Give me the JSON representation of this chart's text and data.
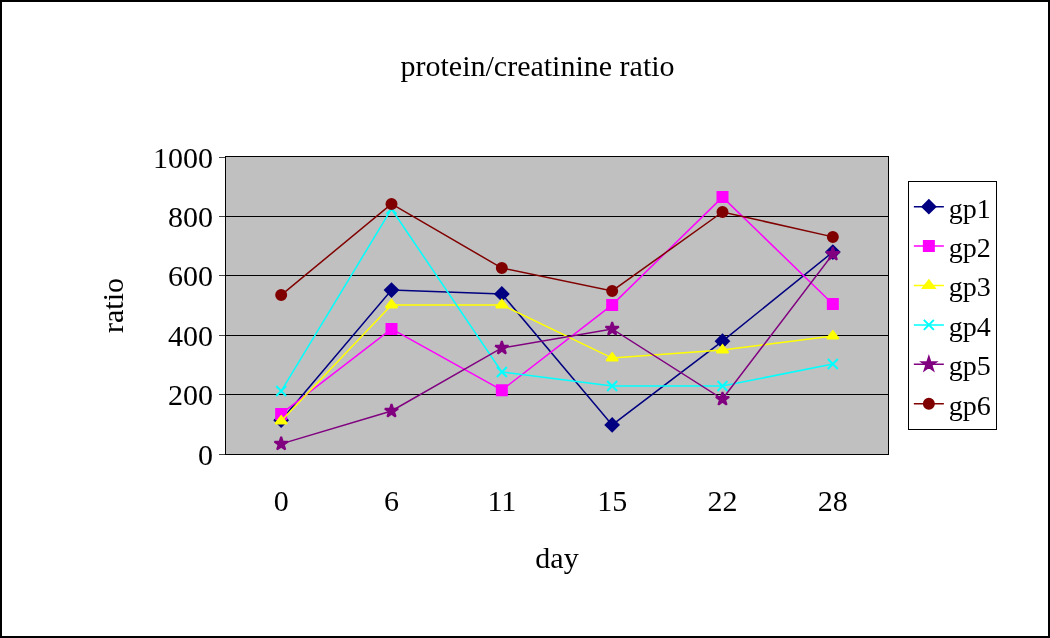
{
  "chart_data": {
    "type": "line",
    "title": "protein/creatinine ratio",
    "xlabel": "day",
    "ylabel": "ratio",
    "categories": [
      "0",
      "6",
      "11",
      "15",
      "22",
      "28"
    ],
    "ylim": [
      0,
      1000
    ],
    "yticks": [
      0,
      200,
      400,
      600,
      800,
      1000
    ],
    "grid": "y",
    "legend": "right",
    "line_style": "solid",
    "series": [
      {
        "name": "gp1",
        "color": "#000080",
        "marker": "diamond",
        "values": [
          114,
          552,
          539,
          98,
          380,
          680
        ]
      },
      {
        "name": "gp2",
        "color": "#ff00ff",
        "marker": "square",
        "values": [
          135,
          421,
          215,
          502,
          865,
          505
        ]
      },
      {
        "name": "gp3",
        "color": "#ffff00",
        "marker": "triangle",
        "values": [
          111,
          502,
          502,
          323,
          350,
          397
        ]
      },
      {
        "name": "gp4",
        "color": "#00ffff",
        "marker": "cross",
        "values": [
          212,
          825,
          276,
          229,
          229,
          303
        ]
      },
      {
        "name": "gp5",
        "color": "#800080",
        "marker": "star",
        "values": [
          34,
          145,
          357,
          421,
          185,
          673
        ]
      },
      {
        "name": "gp6",
        "color": "#800000",
        "marker": "circle",
        "values": [
          535,
          842,
          626,
          549,
          815,
          731
        ]
      }
    ]
  }
}
